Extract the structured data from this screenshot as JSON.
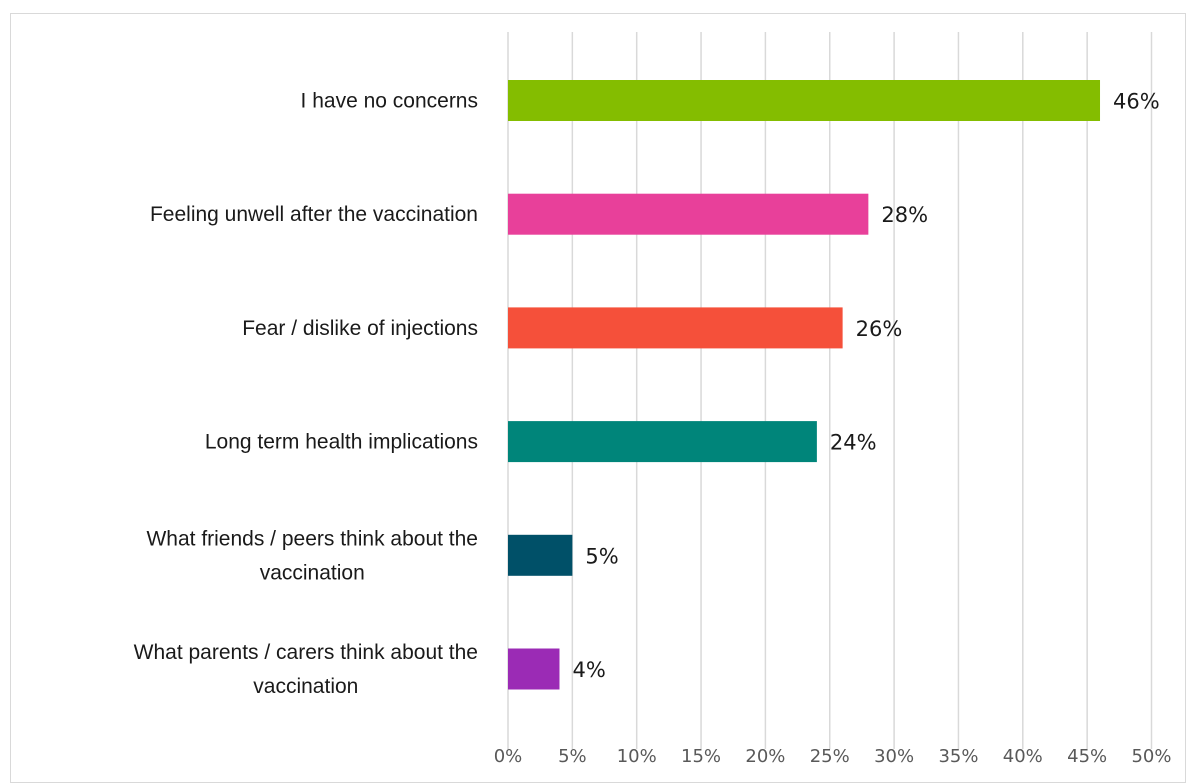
{
  "chart_data": {
    "type": "bar",
    "orientation": "horizontal",
    "title": "",
    "xlabel": "",
    "ylabel": "",
    "categories": [
      "I have no concerns",
      "Feeling unwell after the vaccination",
      "Fear / dislike of injections",
      "Long term health implications",
      "What friends / peers think about the vaccination",
      "What parents / carers think about the vaccination"
    ],
    "category_lines": [
      [
        "I have no concerns"
      ],
      [
        "Feeling unwell after the vaccination"
      ],
      [
        "Fear / dislike of injections"
      ],
      [
        "Long term health implications"
      ],
      [
        "What friends / peers think about the",
        "vaccination"
      ],
      [
        "What parents / carers think about the",
        "vaccination"
      ]
    ],
    "values": [
      46,
      28,
      26,
      24,
      5,
      4
    ],
    "data_labels": [
      "46%",
      "28%",
      "26%",
      "24%",
      "5%",
      "4%"
    ],
    "colors": [
      "#84bd00",
      "#e8409a",
      "#f5503a",
      "#00857a",
      "#005068",
      "#9b2bb5"
    ],
    "xlim": [
      0,
      50
    ],
    "ticks": [
      0,
      5,
      10,
      15,
      20,
      25,
      30,
      35,
      40,
      45,
      50
    ],
    "tick_labels": [
      "0%",
      "5%",
      "10%",
      "15%",
      "20%",
      "25%",
      "30%",
      "35%",
      "40%",
      "45%",
      "50%"
    ],
    "grid": true,
    "legend": "none"
  }
}
